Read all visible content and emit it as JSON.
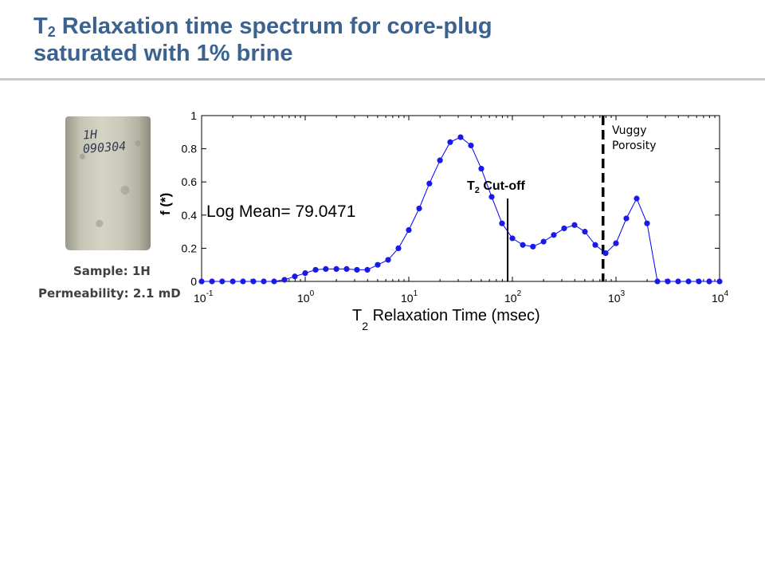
{
  "slide": {
    "title_T": "T",
    "title_sub": "2",
    "title_rest": " Relaxation time spectrum for core-plug",
    "title_line2": "saturated with 1% brine"
  },
  "sample": {
    "image_text_line1": "1H",
    "image_text_line2": "090304",
    "sample_label": "Sample:  1H",
    "permeability_label": "Permeability:  2.1 mD"
  },
  "colors": {
    "title": "#3b6391",
    "series": "#0000ff",
    "marker": "#1a1ae6"
  },
  "chart_data": {
    "type": "line",
    "x_scale": "log",
    "xlim": [
      0.1,
      10000
    ],
    "ylim": [
      0,
      1
    ],
    "xlabel_main": "T",
    "xlabel_sub": "2",
    "xlabel_rest": " Relaxation Time (msec)",
    "ylabel": "f (*)",
    "x_tick_labels": [
      "10",
      "10",
      "10",
      "10",
      "10",
      "10"
    ],
    "x_tick_exponents": [
      "-1",
      "0",
      "1",
      "2",
      "3",
      "4"
    ],
    "x_tick_values": [
      0.1,
      1,
      10,
      100,
      1000,
      10000
    ],
    "y_ticks": [
      0,
      0.2,
      0.4,
      0.6,
      0.8,
      1
    ],
    "y_tick_labels": [
      "0",
      "0.2",
      "0.4",
      "0.6",
      "0.8",
      "1"
    ],
    "series": [
      {
        "x": [
          0.1,
          0.126,
          0.158,
          0.2,
          0.251,
          0.316,
          0.398,
          0.501,
          0.631,
          0.794,
          1.0,
          1.26,
          1.58,
          2.0,
          2.51,
          3.16,
          3.98,
          5.01,
          6.31,
          7.94,
          10.0,
          12.6,
          15.8,
          20.0,
          25.1,
          31.6,
          39.8,
          50.1,
          63.1,
          79.4,
          100,
          126,
          158,
          200,
          251,
          316,
          398,
          501,
          631,
          794,
          1000,
          1259,
          1585,
          1995,
          2512,
          3162,
          3981,
          5012,
          6310,
          7943,
          10000
        ],
        "y": [
          0,
          0,
          0,
          0,
          0,
          0,
          0,
          0,
          0.01,
          0.03,
          0.05,
          0.07,
          0.075,
          0.075,
          0.075,
          0.07,
          0.07,
          0.1,
          0.13,
          0.2,
          0.31,
          0.44,
          0.59,
          0.73,
          0.84,
          0.87,
          0.82,
          0.68,
          0.51,
          0.35,
          0.26,
          0.22,
          0.21,
          0.24,
          0.28,
          0.32,
          0.34,
          0.3,
          0.22,
          0.17,
          0.23,
          0.38,
          0.5,
          0.35,
          0,
          0,
          0,
          0,
          0,
          0,
          0
        ]
      }
    ],
    "annotations": {
      "log_mean": "Log Mean= 79.0471",
      "cutoff_T": "T",
      "cutoff_sub": "2",
      "cutoff_rest": " Cut-off",
      "cutoff_x": 90,
      "vuggy_line1": "Vuggy",
      "vuggy_line2": "Porosity",
      "vuggy_x": 750
    }
  }
}
